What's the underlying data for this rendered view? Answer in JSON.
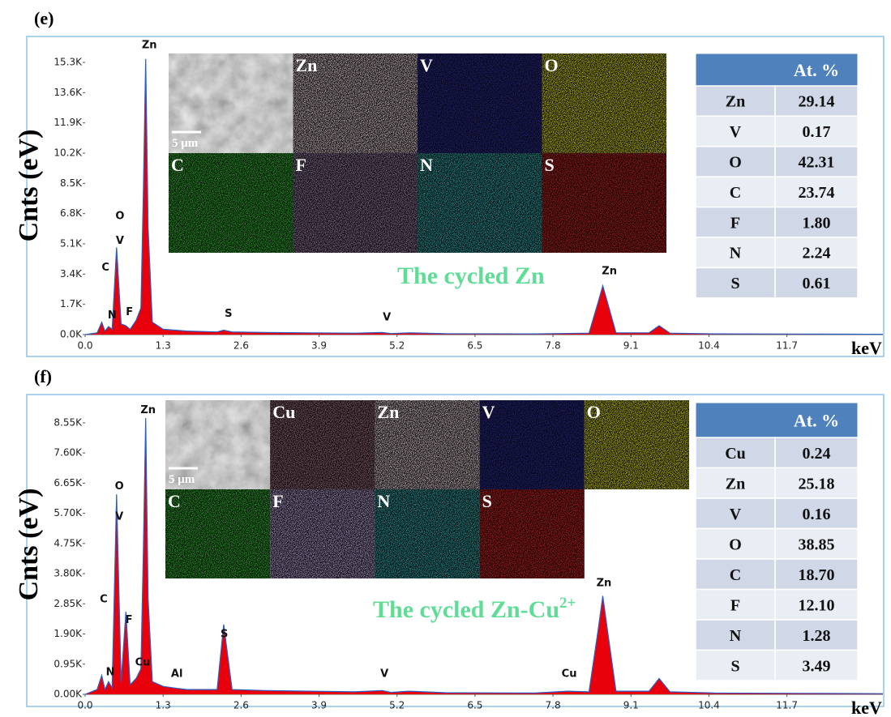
{
  "chart_data": [
    {
      "type": "area",
      "panel_label": "(e)",
      "ylabel": "Cnts (eV)",
      "xlabel": "keV",
      "color": "#e8000b",
      "line_color": "#2a5fc4",
      "x": [
        0,
        0.2,
        0.277,
        0.33,
        0.39,
        0.45,
        0.525,
        0.6,
        0.68,
        0.75,
        0.85,
        0.93,
        0.97,
        1.01,
        1.05,
        1.12,
        1.3,
        1.7,
        2.2,
        2.31,
        2.45,
        3.0,
        4.5,
        4.95,
        5.1,
        5.4,
        6.0,
        7.5,
        8.4,
        8.55,
        8.63,
        8.71,
        8.85,
        9.4,
        9.57,
        9.75,
        10.5,
        12,
        13.3
      ],
      "values": [
        0,
        100,
        700,
        200,
        450,
        300,
        4900,
        600,
        500,
        300,
        800,
        1500,
        8000,
        15500,
        6000,
        700,
        300,
        200,
        150,
        250,
        150,
        120,
        80,
        120,
        60,
        100,
        50,
        40,
        80,
        1800,
        2750,
        1800,
        100,
        100,
        500,
        80,
        40,
        30,
        20
      ],
      "xlim": [
        0,
        13.3
      ],
      "ylim": [
        0,
        16760
      ],
      "xticks": [
        {
          "value": 0,
          "label": "0.0"
        },
        1.3,
        2.6,
        3.9,
        5.2,
        6.5,
        7.8,
        9.1,
        10.4,
        11.7
      ],
      "yticks": [
        {
          "value": 0,
          "label": "0.0K"
        },
        {
          "value": 1700,
          "label": "1.7K"
        },
        {
          "value": 3400,
          "label": "3.4K"
        },
        {
          "value": 5100,
          "label": "5.1K"
        },
        {
          "value": 6800,
          "label": "6.8K"
        },
        {
          "value": 8500,
          "label": "8.5K"
        },
        {
          "value": 10200,
          "label": "10.2K"
        },
        {
          "value": 11900,
          "label": "11.9K"
        },
        {
          "value": 13600,
          "label": "13.6K"
        },
        {
          "value": 15300,
          "label": "15.3K"
        }
      ],
      "annotations": [
        {
          "text": "Zn",
          "x": 1.07,
          "y": 16100
        },
        {
          "text": "O",
          "x": 0.58,
          "y": 6500
        },
        {
          "text": "V",
          "x": 0.58,
          "y": 5100
        },
        {
          "text": "C",
          "x": 0.34,
          "y": 3600
        },
        {
          "text": "N",
          "x": 0.45,
          "y": 900
        },
        {
          "text": "F",
          "x": 0.74,
          "y": 1100
        },
        {
          "text": "S",
          "x": 2.39,
          "y": 1000
        },
        {
          "text": "V",
          "x": 5.03,
          "y": 800
        },
        {
          "text": "Zn",
          "x": 8.74,
          "y": 3400
        }
      ],
      "inset": {
        "caption": "The cycled Zn",
        "tiles": [
          {
            "label": "5 μm",
            "color": "#b0b0b0"
          },
          {
            "label": "Zn",
            "color": "#e8d4dc"
          },
          {
            "label": "V",
            "color": "#2a2aa0"
          },
          {
            "label": "O",
            "color": "#e0e020"
          },
          {
            "label": "C",
            "color": "#30c030"
          },
          {
            "label": "F",
            "color": "#9a80a8"
          },
          {
            "label": "N",
            "color": "#30b0b0"
          },
          {
            "label": "S",
            "color": "#d02020"
          }
        ]
      },
      "table": {
        "header": "At. %",
        "rows": [
          [
            "Zn",
            "29.14"
          ],
          [
            "V",
            "0.17"
          ],
          [
            "O",
            "42.31"
          ],
          [
            "C",
            "23.74"
          ],
          [
            "F",
            "1.80"
          ],
          [
            "N",
            "2.24"
          ],
          [
            "S",
            "0.61"
          ]
        ]
      }
    },
    {
      "type": "area",
      "panel_label": "(f)",
      "ylabel": "Cnts (eV)",
      "xlabel": "keV",
      "color": "#e8000b",
      "line_color": "#2a5fc4",
      "x": [
        0,
        0.2,
        0.277,
        0.33,
        0.39,
        0.45,
        0.525,
        0.6,
        0.68,
        0.75,
        0.85,
        0.93,
        0.97,
        1.01,
        1.05,
        1.12,
        1.3,
        1.49,
        1.7,
        2.2,
        2.31,
        2.45,
        3.0,
        4.5,
        4.95,
        5.1,
        5.4,
        6.0,
        7.5,
        8.05,
        8.4,
        8.55,
        8.63,
        8.71,
        8.85,
        9.4,
        9.57,
        9.75,
        10.5,
        12,
        13.3
      ],
      "values": [
        0,
        150,
        600,
        150,
        400,
        200,
        6300,
        400,
        2600,
        300,
        500,
        800,
        4500,
        8700,
        3000,
        400,
        250,
        200,
        150,
        150,
        2200,
        150,
        120,
        80,
        120,
        60,
        100,
        50,
        40,
        100,
        80,
        2000,
        3100,
        2000,
        100,
        100,
        500,
        80,
        40,
        30,
        20
      ],
      "xlim": [
        0,
        13.3
      ],
      "ylim": [
        0,
        9440
      ],
      "xticks": [
        {
          "value": 0,
          "label": "0.0"
        },
        1.3,
        2.6,
        3.9,
        5.2,
        6.5,
        7.8,
        9.1,
        10.4,
        11.7
      ],
      "yticks": [
        {
          "value": 0,
          "label": "0.00K"
        },
        {
          "value": 950,
          "label": "0.95K"
        },
        {
          "value": 1900,
          "label": "1.90K"
        },
        {
          "value": 2850,
          "label": "2.85K"
        },
        {
          "value": 3800,
          "label": "3.80K"
        },
        {
          "value": 4750,
          "label": "4.75K"
        },
        {
          "value": 5700,
          "label": "5.70K"
        },
        {
          "value": 6650,
          "label": "6.65K"
        },
        {
          "value": 7600,
          "label": "7.60K"
        },
        {
          "value": 8550,
          "label": "8.55K"
        }
      ],
      "annotations": [
        {
          "text": "Zn",
          "x": 1.05,
          "y": 8850
        },
        {
          "text": "O",
          "x": 0.57,
          "y": 6450
        },
        {
          "text": "V",
          "x": 0.57,
          "y": 5500
        },
        {
          "text": "F",
          "x": 0.73,
          "y": 2250
        },
        {
          "text": "C",
          "x": 0.31,
          "y": 2900
        },
        {
          "text": "N",
          "x": 0.42,
          "y": 600
        },
        {
          "text": "Cu",
          "x": 0.96,
          "y": 900
        },
        {
          "text": "Al",
          "x": 1.53,
          "y": 550
        },
        {
          "text": "S",
          "x": 2.32,
          "y": 1800
        },
        {
          "text": "V",
          "x": 4.99,
          "y": 550
        },
        {
          "text": "Cu",
          "x": 8.07,
          "y": 550
        },
        {
          "text": "Zn",
          "x": 8.65,
          "y": 3400
        }
      ],
      "inset": {
        "caption": "The cycled Zn-Cu",
        "caption_sup": "2+",
        "tiles": [
          {
            "label": "5 μm",
            "color": "#b0b0b0"
          },
          {
            "label": "Cu",
            "color": "#a07080"
          },
          {
            "label": "Zn",
            "color": "#e8d4dc"
          },
          {
            "label": "V",
            "color": "#2a2aa0"
          },
          {
            "label": "O",
            "color": "#e0e020"
          },
          {
            "label": "C",
            "color": "#30c030"
          },
          {
            "label": "F",
            "color": "#c0a8e0"
          },
          {
            "label": "N",
            "color": "#30b0b0"
          },
          {
            "label": "S",
            "color": "#e02020"
          }
        ]
      },
      "table": {
        "header": "At. %",
        "rows": [
          [
            "Cu",
            "0.24"
          ],
          [
            "Zn",
            "25.18"
          ],
          [
            "V",
            "0.16"
          ],
          [
            "O",
            "38.85"
          ],
          [
            "C",
            "18.70"
          ],
          [
            "F",
            "12.10"
          ],
          [
            "N",
            "1.28"
          ],
          [
            "S",
            "3.49"
          ]
        ]
      }
    }
  ]
}
